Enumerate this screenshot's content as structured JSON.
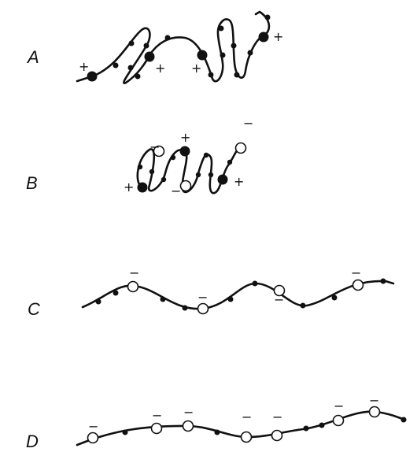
{
  "panels": [
    {
      "label": "A",
      "signs": [
        "+",
        "+",
        "+",
        "+"
      ]
    },
    {
      "label": "B",
      "signs": [
        "−",
        "+",
        "−",
        "+",
        "−",
        "+"
      ]
    },
    {
      "label": "C",
      "signs": [
        "−",
        "−",
        "−",
        "−"
      ]
    },
    {
      "label": "D",
      "signs": [
        "−",
        "−",
        "−",
        "−",
        "−",
        "−",
        "−"
      ]
    }
  ]
}
